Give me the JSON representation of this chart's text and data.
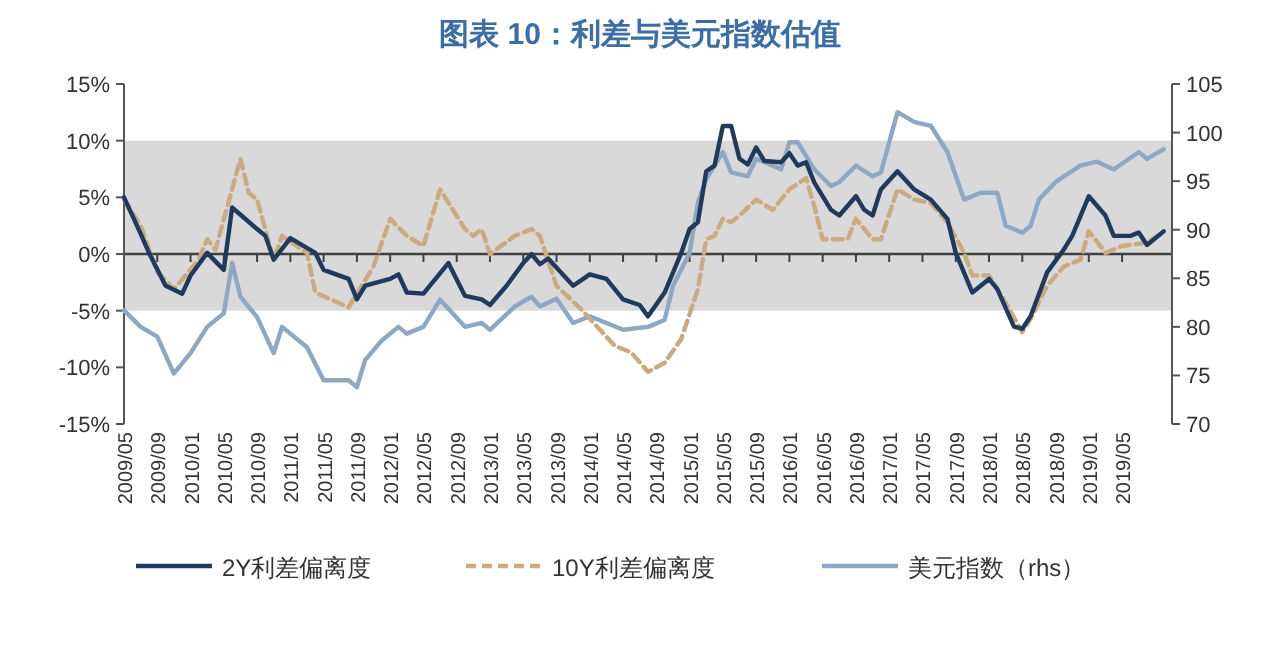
{
  "chart_data": {
    "type": "line",
    "title": "图表 10：利差与美元指数估值",
    "xlim": [
      "2009-05",
      "2019-11"
    ],
    "xticks": [
      {
        "value": "2009-05",
        "label": "2009/05"
      },
      {
        "value": "2009-09",
        "label": "2009/09"
      },
      {
        "value": "2010-01",
        "label": "2010/01"
      },
      {
        "value": "2010-05",
        "label": "2010/05"
      },
      {
        "value": "2010-09",
        "label": "2010/09"
      },
      {
        "value": "2011-01",
        "label": "2011/01"
      },
      {
        "value": "2011-05",
        "label": "2011/05"
      },
      {
        "value": "2011-09",
        "label": "2011/09"
      },
      {
        "value": "2012-01",
        "label": "2012/01"
      },
      {
        "value": "2012-05",
        "label": "2012/05"
      },
      {
        "value": "2012-09",
        "label": "2012/09"
      },
      {
        "value": "2013-01",
        "label": "2013/01"
      },
      {
        "value": "2013-05",
        "label": "2013/05"
      },
      {
        "value": "2013-09",
        "label": "2013/09"
      },
      {
        "value": "2014-01",
        "label": "2014/01"
      },
      {
        "value": "2014-05",
        "label": "2014/05"
      },
      {
        "value": "2014-09",
        "label": "2014/09"
      },
      {
        "value": "2015-01",
        "label": "2015/01"
      },
      {
        "value": "2015-05",
        "label": "2015/05"
      },
      {
        "value": "2015-09",
        "label": "2015/09"
      },
      {
        "value": "2016-01",
        "label": "2016/01"
      },
      {
        "value": "2016-05",
        "label": "2016/05"
      },
      {
        "value": "2016-09",
        "label": "2016/09"
      },
      {
        "value": "2017-01",
        "label": "2017/01"
      },
      {
        "value": "2017-05",
        "label": "2017/05"
      },
      {
        "value": "2017-09",
        "label": "2017/09"
      },
      {
        "value": "2018-01",
        "label": "2018/01"
      },
      {
        "value": "2018-05",
        "label": "2018/05"
      },
      {
        "value": "2018-09",
        "label": "2018/09"
      },
      {
        "value": "2019-01",
        "label": "2019/01"
      },
      {
        "value": "2019-05",
        "label": "2019/05"
      }
    ],
    "ylim": [
      -15,
      15
    ],
    "yticks": [
      {
        "value": -15,
        "label": "-15%"
      },
      {
        "value": -10,
        "label": "-10%"
      },
      {
        "value": -5,
        "label": "-5%"
      },
      {
        "value": 0,
        "label": "0%"
      },
      {
        "value": 5,
        "label": "5%"
      },
      {
        "value": 10,
        "label": "10%"
      },
      {
        "value": 15,
        "label": "15%"
      }
    ],
    "y2lim": [
      70,
      105
    ],
    "y2ticks": [
      70,
      75,
      80,
      85,
      90,
      95,
      100,
      105
    ],
    "bands": [
      {
        "axis": "y",
        "from": -5,
        "to": 10,
        "color": "#d9d9d9"
      }
    ],
    "ref_lines": [
      {
        "axis": "y",
        "value": 0,
        "color": "#404040"
      }
    ],
    "legend": "bottom",
    "series": [
      {
        "name": "美元指数（rhs）",
        "color": "#8ea8c3",
        "axis": "y2",
        "line_style": "solid",
        "x": [
          "2009-05",
          "2009-07",
          "2009-09",
          "2009-11",
          "2010-01",
          "2010-03",
          "2010-05",
          "2010-06",
          "2010-07",
          "2010-09",
          "2010-11",
          "2010-12",
          "2011-03",
          "2011-05",
          "2011-08",
          "2011-09",
          "2011-10",
          "2011-12",
          "2012-02",
          "2012-03",
          "2012-05",
          "2012-07",
          "2012-10",
          "2012-12",
          "2013-01",
          "2013-04",
          "2013-06",
          "2013-07",
          "2013-09",
          "2013-11",
          "2014-01",
          "2014-03",
          "2014-05",
          "2014-08",
          "2014-10",
          "2014-11",
          "2015-01",
          "2015-02",
          "2015-03",
          "2015-05",
          "2015-06",
          "2015-08",
          "2015-09",
          "2015-11",
          "2015-12",
          "2016-01",
          "2016-02",
          "2016-04",
          "2016-06",
          "2016-07",
          "2016-09",
          "2016-11",
          "2016-12",
          "2017-02",
          "2017-04",
          "2017-06",
          "2017-08",
          "2017-10",
          "2017-12",
          "2018-02",
          "2018-03",
          "2018-05",
          "2018-06",
          "2018-07",
          "2018-09",
          "2018-10",
          "2018-12",
          "2019-02",
          "2019-04",
          "2019-07",
          "2019-08",
          "2019-10"
        ],
        "values": [
          81.7,
          80.0,
          79.0,
          75.2,
          77.3,
          80.0,
          81.4,
          86.6,
          83.1,
          81.0,
          77.3,
          80.0,
          77.9,
          74.5,
          74.5,
          73.8,
          76.6,
          78.6,
          80.0,
          79.3,
          80.0,
          82.8,
          80.0,
          80.4,
          79.7,
          82.1,
          83.1,
          82.1,
          82.9,
          80.4,
          81.1,
          80.4,
          79.7,
          80.0,
          80.7,
          84.2,
          87.6,
          92.8,
          95.2,
          98.0,
          95.9,
          95.5,
          97.3,
          96.6,
          96.2,
          99.0,
          99.0,
          96.2,
          94.5,
          94.9,
          96.6,
          95.5,
          95.9,
          102.1,
          101.1,
          100.7,
          98.0,
          93.1,
          93.8,
          93.8,
          90.4,
          89.7,
          90.4,
          93.1,
          94.9,
          95.5,
          96.6,
          97.0,
          96.2,
          98.0,
          97.3,
          98.3
        ]
      },
      {
        "name": "10Y利差偏离度",
        "color": "#c9ab7e",
        "axis": "y",
        "line_style": "dashed",
        "x": [
          "2009-05",
          "2009-07",
          "2009-09",
          "2009-11",
          "2010-02",
          "2010-03",
          "2010-04",
          "2010-07",
          "2010-08",
          "2010-09",
          "2010-11",
          "2010-12",
          "2011-03",
          "2011-04",
          "2011-08",
          "2011-11",
          "2012-01",
          "2012-03",
          "2012-05",
          "2012-07",
          "2012-10",
          "2012-11",
          "2012-12",
          "2013-01",
          "2013-04",
          "2013-06",
          "2013-07",
          "2013-09",
          "2013-12",
          "2014-04",
          "2014-06",
          "2014-08",
          "2014-10",
          "2014-12",
          "2015-02",
          "2015-03",
          "2015-04",
          "2015-05",
          "2015-06",
          "2015-07",
          "2015-09",
          "2015-11",
          "2016-01",
          "2016-03",
          "2016-04",
          "2016-05",
          "2016-08",
          "2016-09",
          "2016-11",
          "2016-12",
          "2017-02",
          "2017-04",
          "2017-06",
          "2017-08",
          "2017-10",
          "2017-11",
          "2018-01",
          "2018-03",
          "2018-05",
          "2018-06",
          "2018-08",
          "2018-10",
          "2018-12",
          "2019-01",
          "2019-03",
          "2019-05",
          "2019-08",
          "2019-10"
        ],
        "values": [
          4.8,
          2.5,
          -1.6,
          -3.1,
          -0.5,
          1.3,
          0.4,
          8.4,
          5.4,
          4.8,
          -0.5,
          1.6,
          0.1,
          -3.4,
          -4.7,
          -1.1,
          3.1,
          1.6,
          0.7,
          5.7,
          2.2,
          1.6,
          2.2,
          0.0,
          1.6,
          2.2,
          1.6,
          -2.8,
          -4.9,
          -8.1,
          -8.7,
          -10.4,
          -9.6,
          -7.5,
          -3.1,
          1.3,
          1.6,
          3.1,
          2.8,
          3.4,
          4.8,
          3.9,
          5.7,
          6.7,
          4.2,
          1.3,
          1.3,
          3.1,
          1.3,
          1.3,
          5.7,
          4.8,
          4.5,
          2.8,
          0.1,
          -1.9,
          -1.9,
          -4.3,
          -6.9,
          -5.7,
          -2.8,
          -1.1,
          -0.5,
          2.0,
          0.1,
          0.7,
          1.0,
          2.0
        ]
      },
      {
        "name": "2Y利差偏离度",
        "color": "#1f3a5c",
        "axis": "y",
        "line_style": "solid",
        "x": [
          "2009-05",
          "2009-07",
          "2009-08",
          "2009-10",
          "2009-12",
          "2010-01",
          "2010-03",
          "2010-05",
          "2010-06",
          "2010-09",
          "2010-10",
          "2010-11",
          "2011-01",
          "2011-04",
          "2011-05",
          "2011-08",
          "2011-09",
          "2011-10",
          "2012-01",
          "2012-02",
          "2012-03",
          "2012-05",
          "2012-08",
          "2012-10",
          "2012-12",
          "2013-01",
          "2013-03",
          "2013-05",
          "2013-06",
          "2013-07",
          "2013-08",
          "2013-11",
          "2014-01",
          "2014-03",
          "2014-05",
          "2014-07",
          "2014-08",
          "2014-10",
          "2014-12",
          "2015-01",
          "2015-02",
          "2015-03",
          "2015-04",
          "2015-05",
          "2015-06",
          "2015-07",
          "2015-08",
          "2015-09",
          "2015-10",
          "2015-12",
          "2016-01",
          "2016-02",
          "2016-03",
          "2016-04",
          "2016-06",
          "2016-07",
          "2016-09",
          "2016-10",
          "2016-11",
          "2016-12",
          "2017-02",
          "2017-04",
          "2017-06",
          "2017-08",
          "2017-09",
          "2017-11",
          "2018-01",
          "2018-02",
          "2018-04",
          "2018-05",
          "2018-06",
          "2018-08",
          "2018-10",
          "2018-11",
          "2019-01",
          "2019-03",
          "2019-04",
          "2019-06",
          "2019-07",
          "2019-08",
          "2019-10"
        ],
        "values": [
          5.0,
          1.8,
          0.1,
          -2.8,
          -3.5,
          -1.9,
          0.1,
          -1.4,
          4.1,
          2.2,
          1.6,
          -0.5,
          1.4,
          0.1,
          -1.4,
          -2.2,
          -4.0,
          -2.8,
          -2.2,
          -1.8,
          -3.4,
          -3.5,
          -0.8,
          -3.7,
          -4.0,
          -4.5,
          -2.8,
          -0.8,
          0.0,
          -0.9,
          -0.4,
          -2.8,
          -1.8,
          -2.2,
          -4.0,
          -4.5,
          -5.5,
          -3.4,
          0.1,
          2.2,
          2.8,
          7.3,
          7.8,
          11.3,
          11.3,
          8.4,
          7.9,
          9.4,
          8.2,
          8.1,
          8.9,
          7.8,
          8.1,
          6.3,
          3.9,
          3.4,
          5.1,
          3.9,
          3.4,
          5.7,
          7.3,
          5.7,
          4.8,
          3.1,
          0.1,
          -3.4,
          -2.2,
          -3.1,
          -6.4,
          -6.6,
          -5.5,
          -1.6,
          0.4,
          1.6,
          5.1,
          3.4,
          1.6,
          1.6,
          1.9,
          0.8,
          2.0
        ]
      }
    ]
  }
}
